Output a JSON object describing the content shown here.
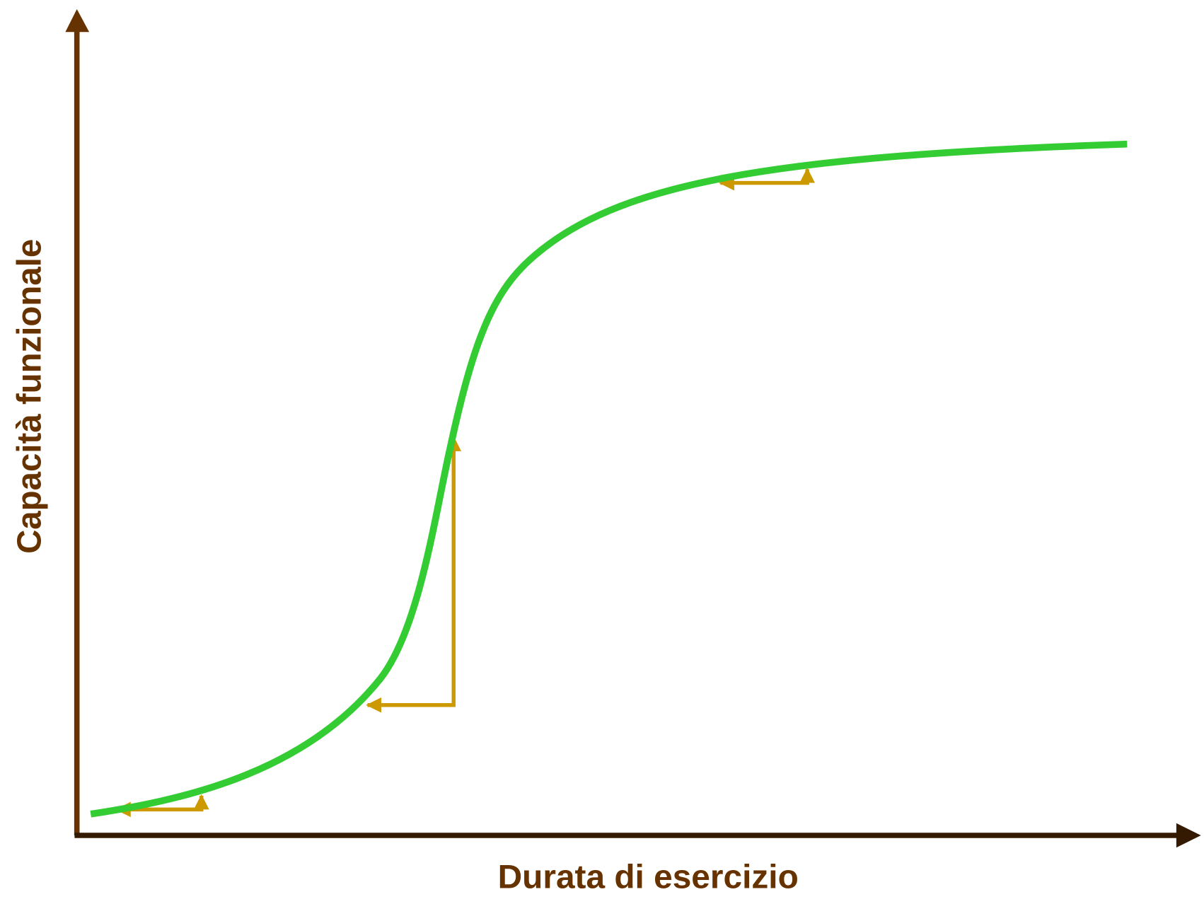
{
  "x_axis_label": "Durata di esercizio",
  "y_axis_label": "Capacità funzionale"
}
